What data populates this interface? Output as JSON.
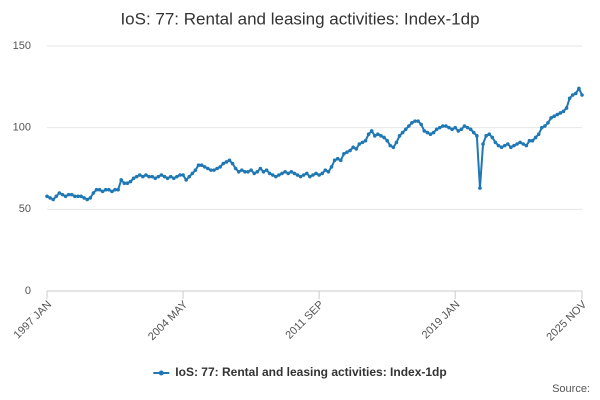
{
  "chart_data": {
    "type": "line",
    "title": "IoS: 77: Rental and leasing activities: Index-1dp",
    "source": "Source:",
    "categories": [
      "1997 JAN",
      null,
      null,
      null,
      null,
      null,
      null,
      null,
      null,
      null,
      null,
      null,
      null,
      null,
      null,
      null,
      null,
      null,
      null,
      null,
      null,
      null,
      null,
      null,
      null,
      null,
      null,
      null,
      null,
      null,
      null,
      null,
      null,
      null,
      null,
      null,
      null,
      null,
      null,
      null,
      null,
      null,
      null,
      null,
      "2004 MAY",
      null,
      null,
      null,
      null,
      null,
      null,
      null,
      null,
      null,
      null,
      null,
      null,
      null,
      null,
      null,
      null,
      null,
      null,
      null,
      null,
      null,
      null,
      null,
      null,
      null,
      null,
      null,
      null,
      null,
      null,
      null,
      null,
      null,
      null,
      null,
      null,
      null,
      null,
      null,
      null,
      null,
      null,
      null,
      "2011 SEP",
      null,
      null,
      null,
      null,
      null,
      null,
      null,
      null,
      null,
      null,
      null,
      null,
      null,
      null,
      null,
      null,
      null,
      null,
      null,
      null,
      null,
      null,
      null,
      null,
      null,
      null,
      null,
      null,
      null,
      null,
      null,
      null,
      null,
      null,
      null,
      null,
      null,
      null,
      null,
      null,
      null,
      null,
      null,
      "2019 JAN",
      null,
      null,
      null,
      null,
      null,
      null,
      null,
      null,
      null,
      null,
      null,
      null,
      null,
      null,
      null,
      null,
      null,
      null,
      null,
      null,
      null,
      null,
      null,
      null,
      null,
      null,
      null,
      null,
      null,
      null,
      null,
      null,
      null,
      null,
      null,
      null,
      null,
      null,
      null,
      null,
      "2025 NOV"
    ],
    "series": [
      {
        "name": "IoS: 77: Rental and leasing activities: Index-1dp",
        "color": "#1f78b4",
        "values": [
          58,
          57,
          56,
          58,
          60,
          59,
          58,
          59,
          59,
          58,
          58,
          58,
          57,
          56,
          57,
          60,
          62,
          62,
          61,
          62,
          62,
          61,
          62,
          62,
          68,
          66,
          66,
          67,
          69,
          70,
          71,
          70,
          71,
          70,
          70,
          69,
          70,
          71,
          70,
          69,
          70,
          69,
          70,
          71,
          71,
          68,
          70,
          72,
          74,
          77,
          77,
          76,
          75,
          74,
          74,
          75,
          76,
          78,
          79,
          80,
          78,
          75,
          73,
          74,
          73,
          73,
          74,
          72,
          73,
          75,
          73,
          74,
          72,
          71,
          70,
          71,
          72,
          73,
          72,
          73,
          72,
          71,
          70,
          71,
          72,
          70,
          71,
          72,
          71,
          72,
          74,
          73,
          76,
          80,
          81,
          80,
          84,
          85,
          86,
          88,
          87,
          90,
          91,
          92,
          96,
          98,
          95,
          96,
          95,
          94,
          92,
          89,
          88,
          91,
          95,
          97,
          99,
          101,
          103,
          104,
          104,
          102,
          98,
          97,
          96,
          97,
          99,
          100,
          101,
          101,
          100,
          99,
          100,
          98,
          99,
          101,
          100,
          99,
          97,
          95,
          63,
          90,
          95,
          96,
          94,
          91,
          89,
          88,
          89,
          90,
          88,
          89,
          90,
          91,
          90,
          89,
          92,
          92,
          94,
          96,
          100,
          101,
          103,
          106,
          107,
          108,
          109,
          110,
          112,
          118,
          120,
          121,
          124,
          120
        ]
      }
    ],
    "ylim": [
      0,
      150
    ],
    "yticks": [
      0,
      50,
      100,
      150
    ],
    "grid": true,
    "legend": "bottom"
  }
}
